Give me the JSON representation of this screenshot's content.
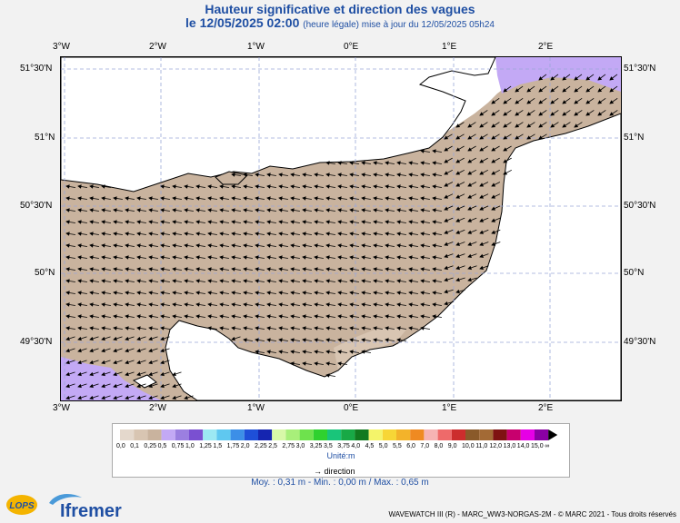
{
  "header": {
    "title": "Hauteur significative et direction des vagues",
    "date": "le 12/05/2025 02:00",
    "note": "(heure légale) mise à jour du 12/05/2025 05h24"
  },
  "axes": {
    "lon_labels": [
      "3°W",
      "2°W",
      "1°W",
      "0°E",
      "1°E",
      "2°E"
    ],
    "lat_labels": [
      "51°30'N",
      "51°N",
      "50°30'N",
      "50°N",
      "49°30'N"
    ]
  },
  "legend": {
    "values": [
      "0,0",
      "0,1",
      "0,25",
      "0,5",
      "0,75",
      "1,0",
      "1,25",
      "1,5",
      "1,75",
      "2,0",
      "2,25",
      "2,5",
      "2,75",
      "3,0",
      "3,25",
      "3,5",
      "3,75",
      "4,0",
      "4,5",
      "5,0",
      "5,5",
      "6,0",
      "7,0",
      "8,0",
      "9,0",
      "10,0",
      "11,0",
      "12,0",
      "13,0",
      "14,0",
      "15,0",
      "∞"
    ],
    "colors": [
      "#e4d8cc",
      "#d8c5b2",
      "#c9b39e",
      "#c3a9f5",
      "#9b7fe0",
      "#7a50d1",
      "#9ce9f3",
      "#5fc8f0",
      "#3c8fe7",
      "#1e4fd8",
      "#1525b0",
      "#d8f8a8",
      "#a8ef7a",
      "#6ee24d",
      "#2fd12f",
      "#19c57a",
      "#18a946",
      "#117a1f",
      "#f4f46a",
      "#f7d636",
      "#f3b32a",
      "#ef8a22",
      "#f6b3b3",
      "#ee6a6a",
      "#cc2d2d",
      "#8a5a2a",
      "#a36a35",
      "#7f1212",
      "#c8006e",
      "#e600e6",
      "#8a00a3"
    ],
    "unit": "Unité:m",
    "direction": "direction"
  },
  "stats": "Moy. : 0,31 m   -   Min. : 0,00 m / Max. : 0,65 m",
  "footer": "WAVEWATCH III (R) - MARC_WW3-NORGAS-2M - © MARC 2021 - Tous droits réservés",
  "logos": {
    "lops": "LOPS",
    "ifremer": "Ifremer"
  }
}
